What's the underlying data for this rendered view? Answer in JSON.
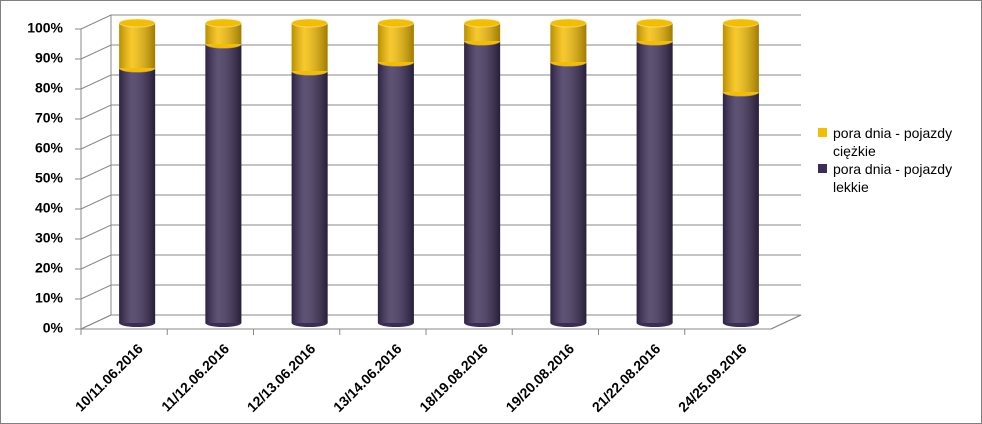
{
  "chart_data": {
    "type": "stacked-bar-3d",
    "categories": [
      "10/11.06.2016",
      "11/12.06.2016",
      "12/13.06.2016",
      "13/14.06.2016",
      "18/19.08.2016",
      "19/20.08.2016",
      "21/22.08.2016",
      "24/25.09.2016"
    ],
    "series": [
      {
        "name": "pora dnia - pojazdy lekkie",
        "color": "#3b2d56",
        "values": [
          85,
          93,
          84,
          87,
          94,
          87,
          94,
          77
        ]
      },
      {
        "name": "pora dnia - pojazdy ciężkie",
        "color": "#f5bd00",
        "values": [
          15,
          7,
          16,
          13,
          6,
          13,
          6,
          23
        ]
      }
    ],
    "ylim": [
      0,
      100
    ],
    "yticks": [
      {
        "value": 0,
        "label": "0%"
      },
      {
        "value": 10,
        "label": "10%"
      },
      {
        "value": 20,
        "label": "20%"
      },
      {
        "value": 30,
        "label": "30%"
      },
      {
        "value": 40,
        "label": "40%"
      },
      {
        "value": 50,
        "label": "50%"
      },
      {
        "value": 60,
        "label": "60%"
      },
      {
        "value": 70,
        "label": "70%"
      },
      {
        "value": 80,
        "label": "80%"
      },
      {
        "value": 90,
        "label": "90%"
      },
      {
        "value": 100,
        "label": "100%"
      }
    ],
    "grid": true,
    "legend": "right"
  }
}
